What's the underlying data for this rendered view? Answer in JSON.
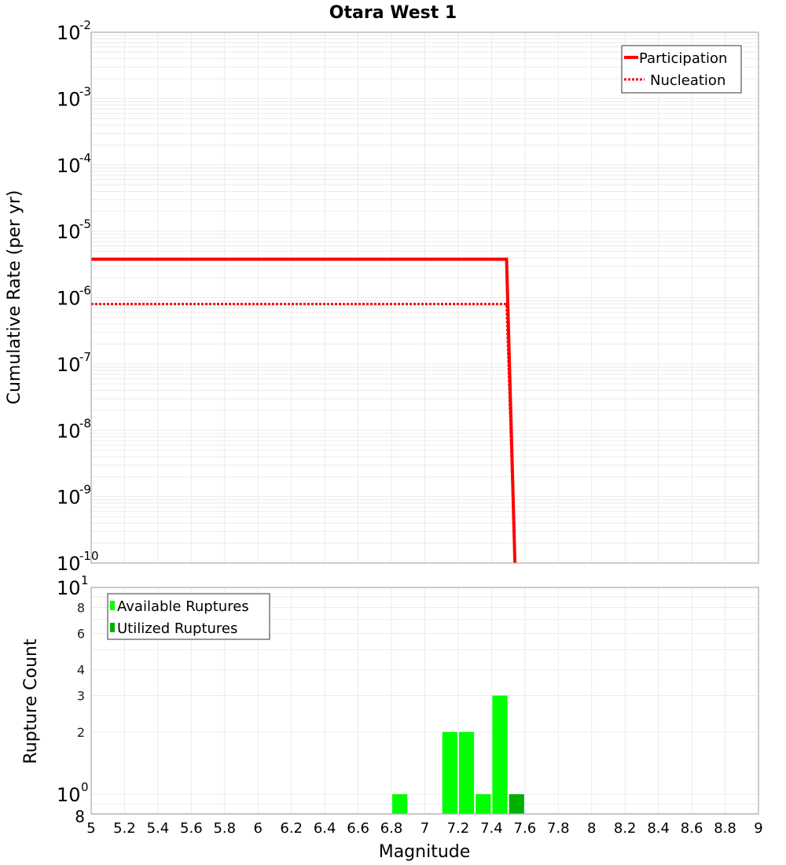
{
  "title": "Otara West 1",
  "colors": {
    "participation": "#ff0000",
    "nucleation": "#ff0000",
    "available": "#00ff00",
    "utilized": "#00b000",
    "grid": "#ebebeb",
    "frame": "#aaaaaa"
  },
  "top_panel": {
    "ylabel": "Cumulative Rate (per yr)",
    "y_ticks": [
      {
        "base": "10",
        "exp": "-2"
      },
      {
        "base": "10",
        "exp": "-3"
      },
      {
        "base": "10",
        "exp": "-4"
      },
      {
        "base": "10",
        "exp": "-5"
      },
      {
        "base": "10",
        "exp": "-6"
      },
      {
        "base": "10",
        "exp": "-7"
      },
      {
        "base": "10",
        "exp": "-8"
      },
      {
        "base": "10",
        "exp": "-9"
      },
      {
        "base": "10",
        "exp": "-10"
      }
    ],
    "legend": {
      "participation": "Participation",
      "nucleation": "Nucleation"
    }
  },
  "bottom_panel": {
    "ylabel": "Rupture Count",
    "y_ticks": [
      {
        "label": "10",
        "exp": "1"
      },
      {
        "label": "8"
      },
      {
        "label": "6"
      },
      {
        "label": "4"
      },
      {
        "label": "3"
      },
      {
        "label": "2"
      },
      {
        "label": "10",
        "exp": "0"
      },
      {
        "label": "8"
      }
    ],
    "legend": {
      "available": "Available Ruptures",
      "utilized": "Utilized Ruptures"
    }
  },
  "xlabel": "Magnitude",
  "x_ticks": [
    "5",
    "5.2",
    "5.4",
    "5.6",
    "5.8",
    "6",
    "6.2",
    "6.4",
    "6.6",
    "6.8",
    "7",
    "7.2",
    "7.4",
    "7.6",
    "7.8",
    "8",
    "8.2",
    "8.4",
    "8.6",
    "8.8",
    "9"
  ],
  "chart_data": [
    {
      "type": "line",
      "title": "Otara West 1",
      "xlabel": "Magnitude",
      "ylabel": "Cumulative Rate (per yr)",
      "xlim": [
        5,
        9
      ],
      "ylim": [
        1e-10,
        0.01
      ],
      "yscale": "log",
      "grid": true,
      "legend_position": "top-right",
      "series": [
        {
          "name": "Participation",
          "style": "solid",
          "color": "#ff0000",
          "x": [
            5.0,
            7.49,
            7.54
          ],
          "y": [
            3.8e-06,
            3.8e-06,
            1e-10
          ]
        },
        {
          "name": "Nucleation",
          "style": "dotted",
          "color": "#ff0000",
          "x": [
            5.0,
            7.49,
            7.54
          ],
          "y": [
            8e-07,
            8e-07,
            1e-10
          ]
        }
      ]
    },
    {
      "type": "bar",
      "xlabel": "Magnitude",
      "ylabel": "Rupture Count",
      "xlim": [
        5,
        9
      ],
      "ylim": [
        0.8,
        10
      ],
      "yscale": "log",
      "grid": true,
      "legend_position": "top-left",
      "bar_width": 0.1,
      "series": [
        {
          "name": "Available Ruptures",
          "color": "#00ff00",
          "x": [
            6.85,
            7.15,
            7.25,
            7.35,
            7.45
          ],
          "values": [
            1,
            2,
            2,
            1,
            3
          ]
        },
        {
          "name": "Utilized Ruptures",
          "color": "#00b000",
          "x": [
            7.55
          ],
          "values": [
            1
          ]
        }
      ]
    }
  ]
}
